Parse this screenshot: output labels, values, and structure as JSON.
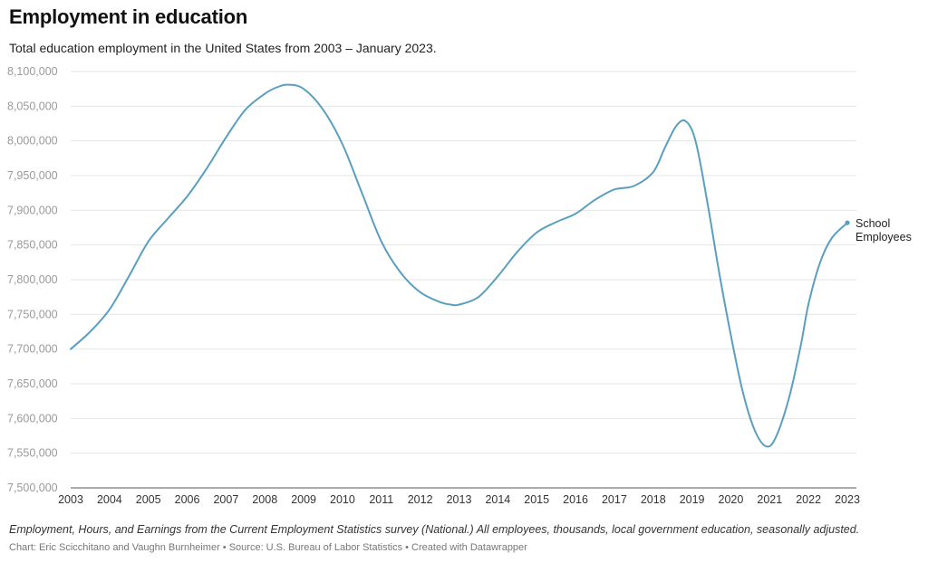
{
  "chart_data": {
    "type": "line",
    "title": "Employment in education",
    "subtitle": "Total education employment in the United States from 2003 – January 2023.",
    "xlabel": "",
    "ylabel": "",
    "x_ticks": [
      "2003",
      "2004",
      "2005",
      "2006",
      "2007",
      "2008",
      "2009",
      "2010",
      "2011",
      "2012",
      "2013",
      "2014",
      "2015",
      "2016",
      "2017",
      "2018",
      "2019",
      "2020",
      "2021",
      "2022",
      "2023"
    ],
    "y_ticks": [
      "7,500,000",
      "7,550,000",
      "7,600,000",
      "7,650,000",
      "7,700,000",
      "7,750,000",
      "7,800,000",
      "7,850,000",
      "7,900,000",
      "7,950,000",
      "8,000,000",
      "8,050,000",
      "8,100,000"
    ],
    "xlim": [
      2003,
      2023
    ],
    "ylim": [
      7500000,
      8100000
    ],
    "grid": "horizontal",
    "series": [
      {
        "name": "School Employees",
        "color": "#5a9fbe",
        "points": [
          [
            2003.0,
            7700000
          ],
          [
            2003.5,
            7725000
          ],
          [
            2004.0,
            7757000
          ],
          [
            2004.5,
            7805000
          ],
          [
            2005.0,
            7855000
          ],
          [
            2005.5,
            7888000
          ],
          [
            2006.0,
            7920000
          ],
          [
            2006.5,
            7960000
          ],
          [
            2007.0,
            8005000
          ],
          [
            2007.5,
            8045000
          ],
          [
            2008.0,
            8068000
          ],
          [
            2008.3,
            8077000
          ],
          [
            2008.6,
            8081000
          ],
          [
            2009.0,
            8075000
          ],
          [
            2009.5,
            8045000
          ],
          [
            2010.0,
            7995000
          ],
          [
            2010.5,
            7925000
          ],
          [
            2011.0,
            7855000
          ],
          [
            2011.5,
            7810000
          ],
          [
            2012.0,
            7782000
          ],
          [
            2012.5,
            7768000
          ],
          [
            2012.8,
            7764000
          ],
          [
            2013.0,
            7764000
          ],
          [
            2013.5,
            7775000
          ],
          [
            2014.0,
            7805000
          ],
          [
            2014.5,
            7840000
          ],
          [
            2015.0,
            7868000
          ],
          [
            2015.5,
            7883000
          ],
          [
            2016.0,
            7895000
          ],
          [
            2016.5,
            7915000
          ],
          [
            2017.0,
            7930000
          ],
          [
            2017.5,
            7935000
          ],
          [
            2018.0,
            7955000
          ],
          [
            2018.3,
            7990000
          ],
          [
            2018.6,
            8022000
          ],
          [
            2018.85,
            8028000
          ],
          [
            2019.1,
            7998000
          ],
          [
            2019.4,
            7910000
          ],
          [
            2019.7,
            7810000
          ],
          [
            2020.0,
            7720000
          ],
          [
            2020.3,
            7640000
          ],
          [
            2020.6,
            7585000
          ],
          [
            2020.9,
            7560000
          ],
          [
            2021.15,
            7572000
          ],
          [
            2021.5,
            7630000
          ],
          [
            2021.8,
            7705000
          ],
          [
            2022.0,
            7765000
          ],
          [
            2022.3,
            7825000
          ],
          [
            2022.6,
            7860000
          ],
          [
            2023.0,
            7882000
          ]
        ],
        "end_label": "School Employees"
      }
    ]
  },
  "footer": {
    "note": "Employment, Hours, and Earnings from the Current Employment Statistics survey (National.) All employees, thousands, local government education, seasonally adjusted.",
    "credit": "Chart: Eric Scicchitano and Vaughn Burnheimer • Source: U.S. Bureau of Labor Statistics • Created with Datawrapper"
  }
}
